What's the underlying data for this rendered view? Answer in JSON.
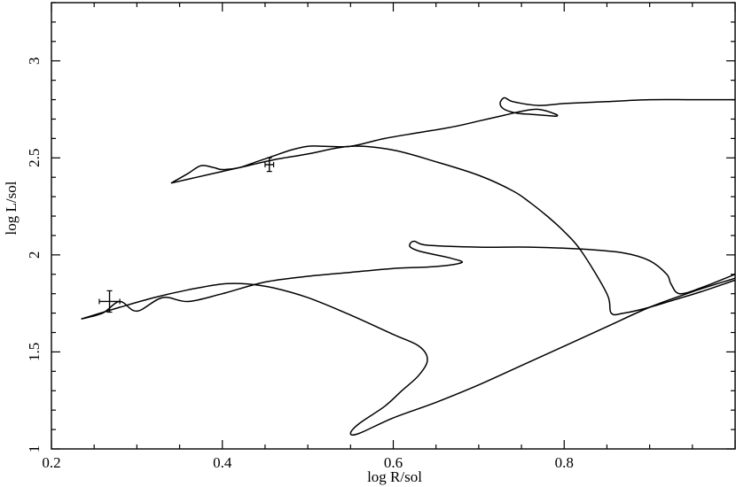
{
  "chart_data": {
    "type": "line",
    "xlabel": "log R/sol",
    "ylabel": "log L/sol",
    "xlim": [
      0.2,
      1.0
    ],
    "ylim": [
      1.0,
      3.3
    ],
    "x_ticks": [
      0.2,
      0.4,
      0.6,
      0.8
    ],
    "x_tick_labels": [
      "0.2",
      "0.4",
      "0.6",
      "0.8"
    ],
    "y_ticks": [
      1.0,
      1.5,
      2.0,
      2.5,
      3.0
    ],
    "y_tick_labels": [
      "1",
      "1.5",
      "2",
      "2.5",
      "3"
    ],
    "grid": false,
    "series": [
      {
        "x": [
          0.34,
          0.36,
          0.375,
          0.39,
          0.4,
          0.42,
          0.44,
          0.46,
          0.48,
          0.5,
          0.52,
          0.55,
          0.59,
          0.63,
          0.67,
          0.7,
          0.73,
          0.75,
          0.77,
          0.79,
          0.79,
          0.775,
          0.76,
          0.745,
          0.73,
          0.725,
          0.73,
          0.74,
          0.77,
          0.8,
          0.85,
          0.9,
          0.95,
          1.0
        ],
        "y": [
          2.37,
          2.42,
          2.46,
          2.45,
          2.44,
          2.45,
          2.48,
          2.51,
          2.54,
          2.56,
          2.56,
          2.56,
          2.6,
          2.63,
          2.66,
          2.69,
          2.72,
          2.74,
          2.75,
          2.725,
          2.715,
          2.72,
          2.725,
          2.73,
          2.75,
          2.78,
          2.81,
          2.79,
          2.77,
          2.78,
          2.79,
          2.8,
          2.8,
          2.8
        ]
      },
      {
        "x": [
          0.34,
          0.37,
          0.4,
          0.43,
          0.46,
          0.5,
          0.55,
          0.6,
          0.65,
          0.7,
          0.74,
          0.76,
          0.78,
          0.8,
          0.82,
          0.85,
          0.855,
          0.87,
          0.9,
          0.93,
          0.96,
          1.0
        ],
        "y": [
          2.37,
          2.4,
          2.43,
          2.46,
          2.49,
          2.52,
          2.56,
          2.54,
          2.48,
          2.41,
          2.33,
          2.27,
          2.2,
          2.12,
          2.02,
          1.8,
          1.7,
          1.7,
          1.73,
          1.77,
          1.81,
          1.87
        ]
      },
      {
        "x": [
          0.235,
          0.26,
          0.28,
          0.3,
          0.33,
          0.36,
          0.4,
          0.45,
          0.5,
          0.55,
          0.6,
          0.65,
          0.68,
          0.67,
          0.65,
          0.63,
          0.62,
          0.62,
          0.625,
          0.64,
          0.7,
          0.76,
          0.82,
          0.87,
          0.9,
          0.92,
          0.925,
          0.935,
          0.96,
          1.0
        ],
        "y": [
          1.67,
          1.7,
          1.76,
          1.71,
          1.78,
          1.76,
          1.8,
          1.86,
          1.89,
          1.91,
          1.93,
          1.94,
          1.96,
          1.98,
          2.0,
          2.02,
          2.04,
          2.06,
          2.07,
          2.05,
          2.04,
          2.04,
          2.03,
          2.01,
          1.97,
          1.9,
          1.85,
          1.8,
          1.83,
          1.9
        ]
      },
      {
        "x": [
          0.235,
          0.28,
          0.32,
          0.36,
          0.4,
          0.43,
          0.46,
          0.5,
          0.55,
          0.6,
          0.63,
          0.64,
          0.63,
          0.61,
          0.59,
          0.56,
          0.55,
          0.56,
          0.6,
          0.65,
          0.7,
          0.75,
          0.8,
          0.85,
          0.9,
          0.95,
          1.0
        ],
        "y": [
          1.67,
          1.73,
          1.78,
          1.82,
          1.85,
          1.85,
          1.83,
          1.78,
          1.69,
          1.59,
          1.53,
          1.46,
          1.38,
          1.3,
          1.22,
          1.13,
          1.08,
          1.08,
          1.16,
          1.24,
          1.33,
          1.43,
          1.53,
          1.63,
          1.73,
          1.81,
          1.88
        ]
      }
    ],
    "error_bars": [
      {
        "x": 0.455,
        "y": 2.465,
        "xerr": 0.005,
        "yerr": 0.035
      },
      {
        "x": 0.268,
        "y": 1.76,
        "xerr": 0.012,
        "yerr": 0.055
      }
    ]
  }
}
